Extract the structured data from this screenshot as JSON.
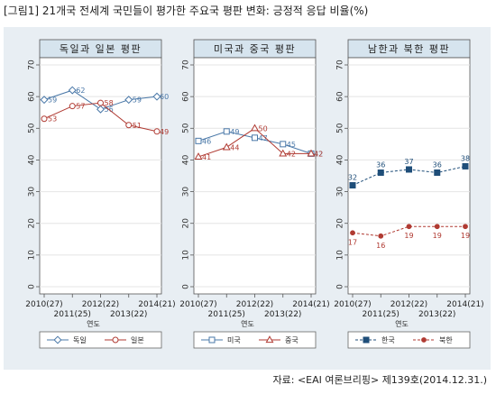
{
  "figure_title": "[그림1] 21개국 전세계 국민들이 평가한 주요국 평판 변화: 긍정적 응답 비율(%)",
  "source": "자료: <EAI 여론브리핑> 제139호(2014.12.31.)",
  "x_axis_title": "연도",
  "colors": {
    "blue": "#1f4e79",
    "blue_light": "#4a78a8",
    "red": "#b03a32",
    "strip_bg": "#d6e4ee",
    "panel_bg": "#ffffff",
    "outer_bg": "#e8eef3",
    "grid": "#e4e4e4"
  },
  "chart_data": [
    {
      "type": "line",
      "title": "독일과 일본 평판",
      "x": [
        "2010(27)",
        "2011(25)",
        "2012(22)",
        "2013(22)",
        "2014(21)"
      ],
      "tick_labels_top": [
        "2010(27)",
        "2012(22)",
        "2014(21)"
      ],
      "tick_labels_bottom": [
        "2011(25)",
        "2013(22)"
      ],
      "ylim": [
        0,
        70
      ],
      "yticks": [
        0,
        10,
        20,
        30,
        40,
        50,
        60,
        70
      ],
      "xlabel": "연도",
      "series": [
        {
          "name": "독일",
          "values": [
            59,
            62,
            56,
            59,
            60
          ],
          "style": "solid",
          "marker": "diamond-open",
          "color": "#4a78a8"
        },
        {
          "name": "일본",
          "values": [
            53,
            57,
            58,
            51,
            49
          ],
          "style": "solid",
          "marker": "circle-open",
          "color": "#b03a32"
        }
      ]
    },
    {
      "type": "line",
      "title": "미국과 중국 평판",
      "x": [
        "2010(27)",
        "2011(25)",
        "2012(22)",
        "2013(22)",
        "2014(21)"
      ],
      "tick_labels_top": [
        "2010(27)",
        "2012(22)",
        "2014(21)"
      ],
      "tick_labels_bottom": [
        "2011(25)",
        "2013(22)"
      ],
      "ylim": [
        0,
        70
      ],
      "yticks": [
        0,
        10,
        20,
        30,
        40,
        50,
        60,
        70
      ],
      "xlabel": "연도",
      "series": [
        {
          "name": "미국",
          "values": [
            46,
            49,
            47,
            45,
            42
          ],
          "style": "solid",
          "marker": "square-open",
          "color": "#4a78a8"
        },
        {
          "name": "중국",
          "values": [
            41,
            44,
            50,
            42,
            42
          ],
          "style": "solid",
          "marker": "triangle-open",
          "color": "#b03a32"
        }
      ]
    },
    {
      "type": "line",
      "title": "남한과 북한 평판",
      "x": [
        "2010(27)",
        "2011(25)",
        "2012(22)",
        "2013(22)",
        "2014(21)"
      ],
      "tick_labels_top": [
        "2010(27)",
        "2012(22)",
        "2014(21)"
      ],
      "tick_labels_bottom": [
        "2011(25)",
        "2013(22)"
      ],
      "ylim": [
        0,
        70
      ],
      "yticks": [
        0,
        10,
        20,
        30,
        40,
        50,
        60,
        70
      ],
      "xlabel": "연도",
      "series": [
        {
          "name": "한국",
          "values": [
            32,
            36,
            37,
            36,
            38
          ],
          "style": "dashed",
          "marker": "square-filled",
          "color": "#1f4e79"
        },
        {
          "name": "북한",
          "values": [
            17,
            16,
            19,
            19,
            19
          ],
          "style": "dashed",
          "marker": "circle-filled",
          "color": "#b03a32"
        }
      ]
    }
  ]
}
